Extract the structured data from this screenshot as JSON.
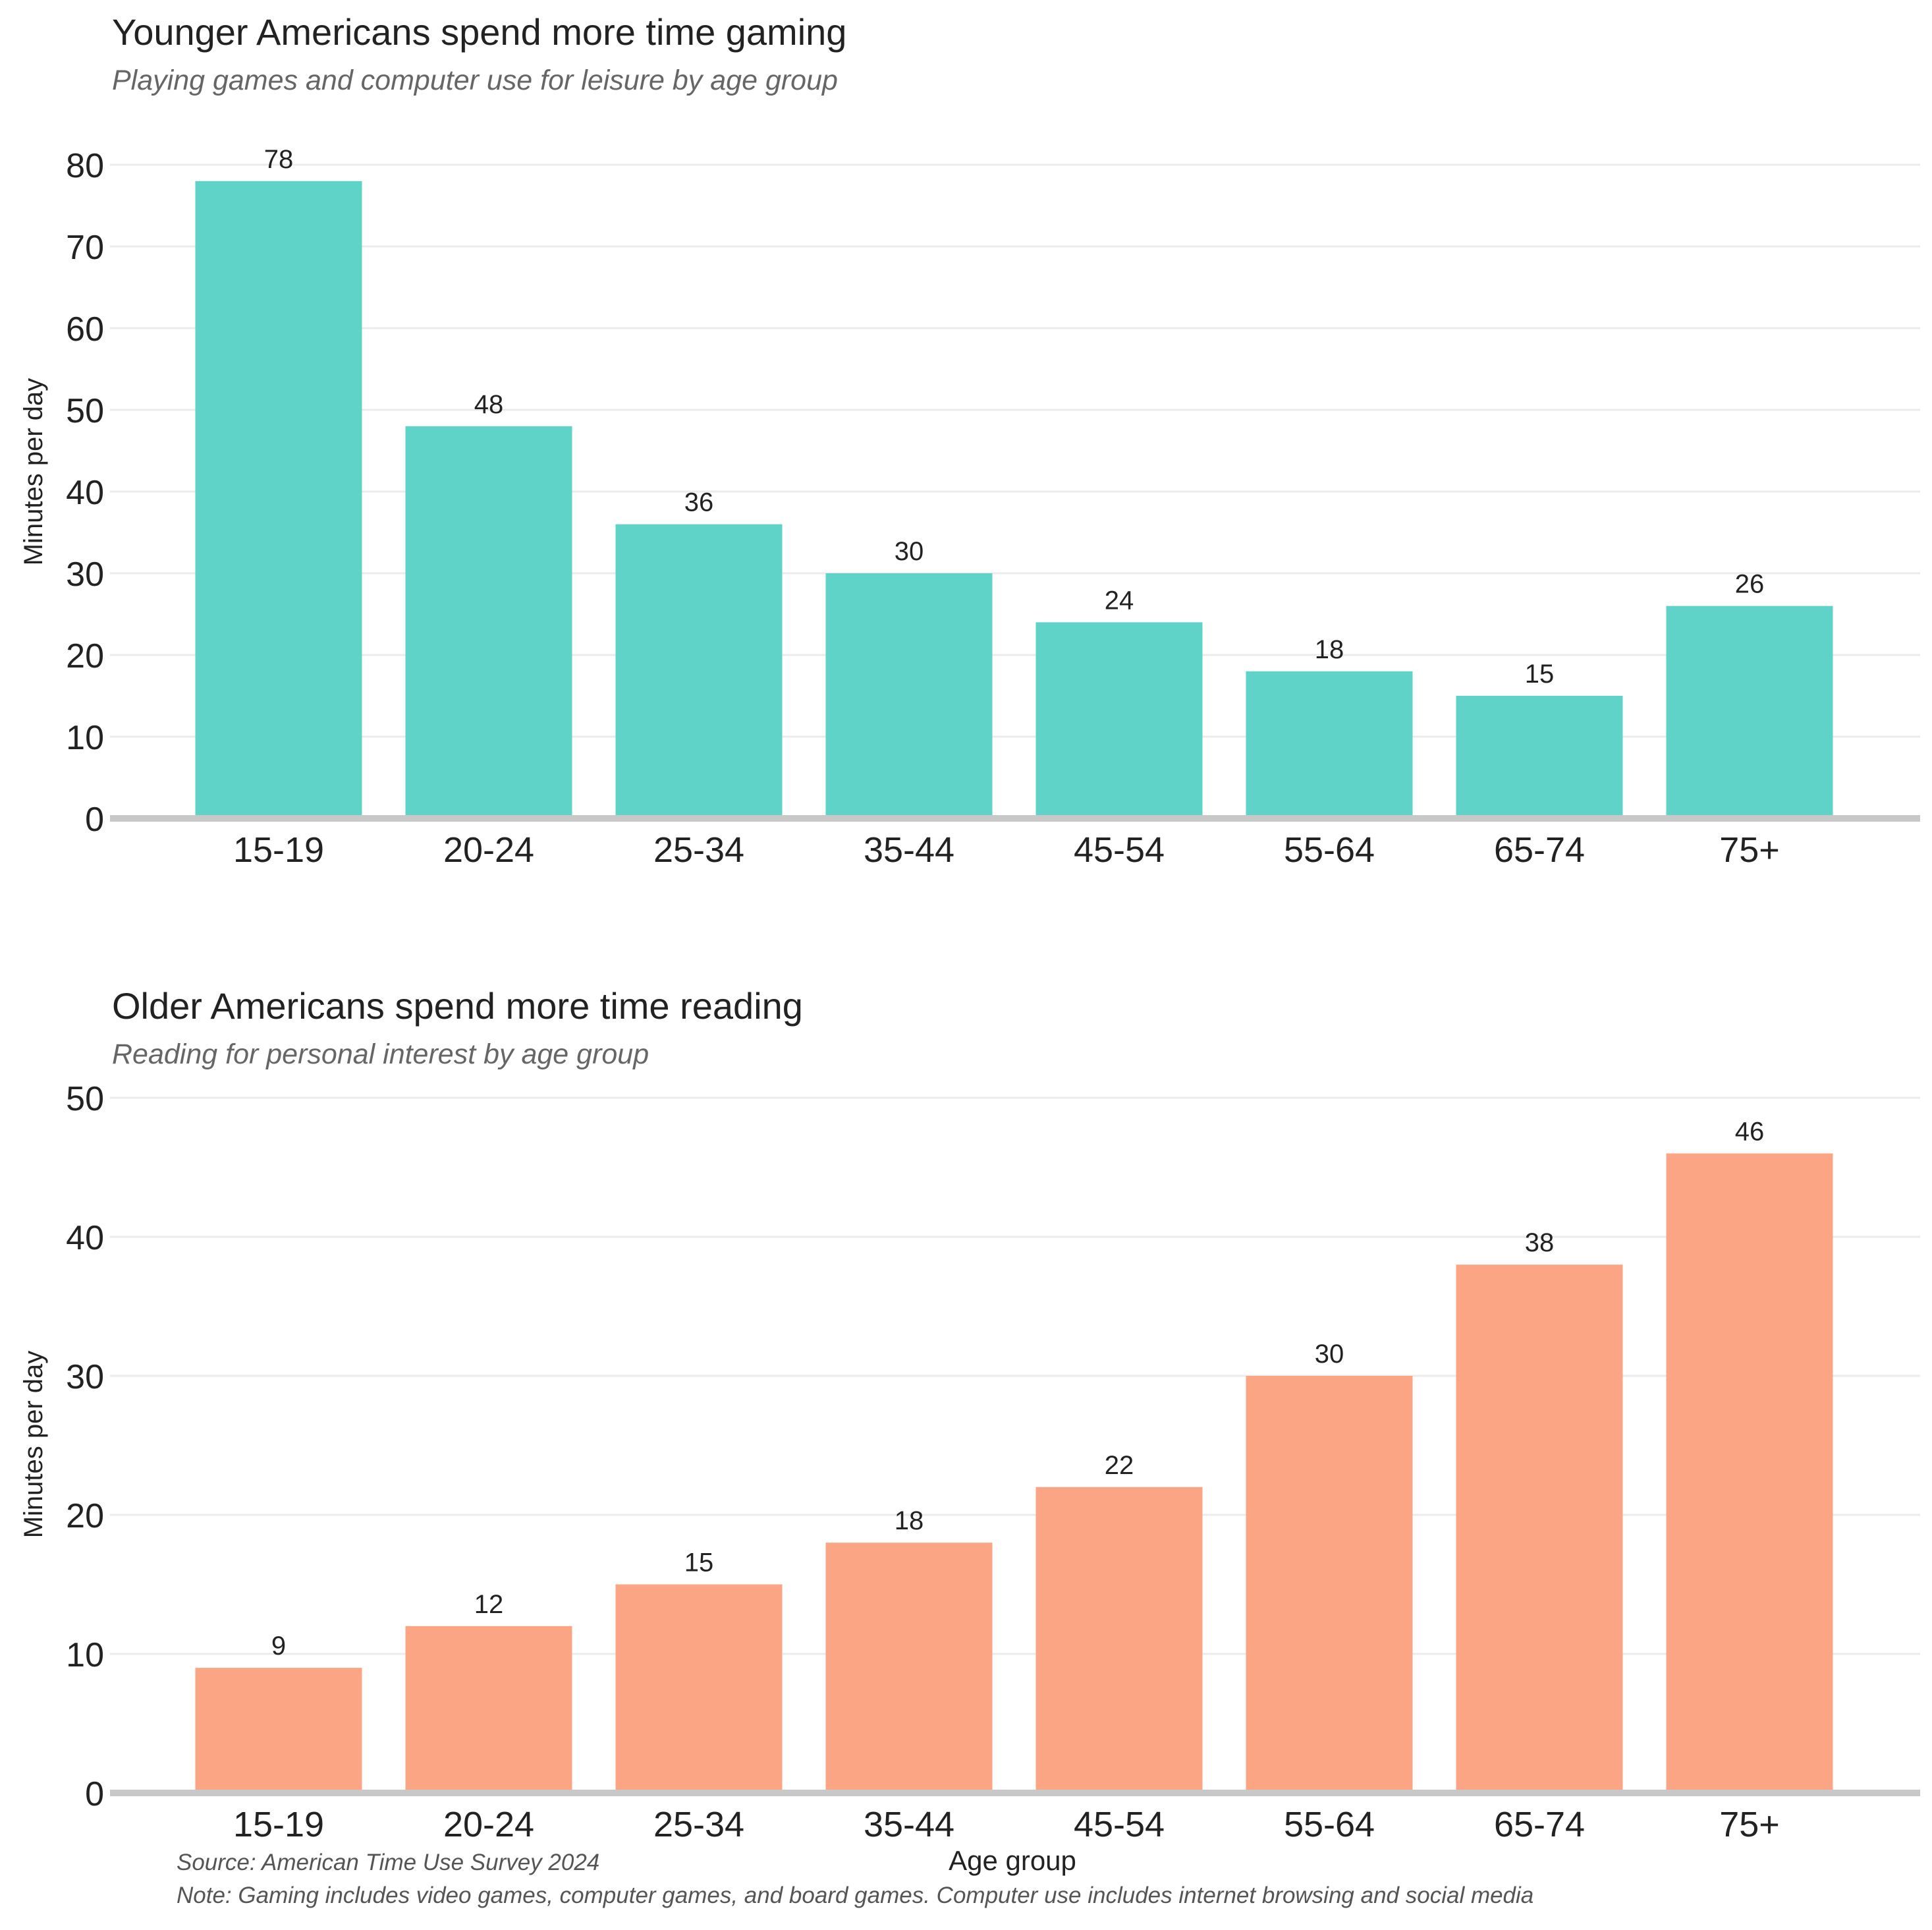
{
  "chart_data": [
    {
      "type": "bar",
      "title": "Younger Americans spend more time gaming",
      "subtitle": "Playing games and computer use for leisure by age group",
      "ylabel": "Minutes per day",
      "xlabel": "",
      "categories": [
        "15-19",
        "20-24",
        "25-34",
        "35-44",
        "45-54",
        "55-64",
        "65-74",
        "75+"
      ],
      "values": [
        78,
        48,
        36,
        30,
        24,
        18,
        15,
        26
      ],
      "ylim": [
        0,
        80
      ],
      "yticks": [
        0,
        10,
        20,
        30,
        40,
        50,
        60,
        70,
        80
      ],
      "color": "#5fd3c7",
      "grid": true,
      "legend": "none"
    },
    {
      "type": "bar",
      "title": "Older Americans spend more time reading",
      "subtitle": "Reading for personal interest by age group",
      "ylabel": "Minutes per day",
      "xlabel": "Age group",
      "categories": [
        "15-19",
        "20-24",
        "25-34",
        "35-44",
        "45-54",
        "55-64",
        "65-74",
        "75+"
      ],
      "values": [
        9,
        12,
        15,
        18,
        22,
        30,
        38,
        46
      ],
      "ylim": [
        0,
        50
      ],
      "yticks": [
        0,
        10,
        20,
        30,
        40,
        50
      ],
      "color": "#fca584",
      "grid": true,
      "legend": "none"
    }
  ],
  "footer": {
    "source": "Source: American Time Use Survey 2024",
    "note": "Note: Gaming includes video games, computer games, and board games. Computer use includes internet browsing and social media"
  },
  "colors": {
    "gaming": "#5fd3c7",
    "reading": "#fca584",
    "grid": "#ebebeb",
    "baseline": "#c8c8c8"
  }
}
